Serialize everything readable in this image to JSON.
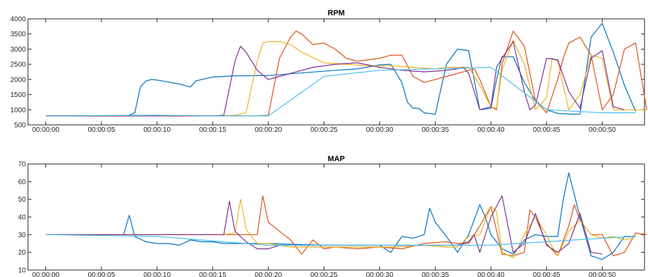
{
  "chart_data": [
    {
      "type": "line",
      "title": "RPM",
      "x_ticks": [
        "00:00:00",
        "00:00:05",
        "00:00:10",
        "00:00:15",
        "00:00:20",
        "00:00:25",
        "00:00:30",
        "00:00:35",
        "00:00:40",
        "00:00:45",
        "00:00:50"
      ],
      "x_tick_seconds": [
        0,
        5,
        10,
        15,
        20,
        25,
        30,
        35,
        40,
        45,
        50
      ],
      "xlim": [
        -1.6,
        53.8
      ],
      "ylim": [
        500,
        4000
      ],
      "y_ticks": [
        500,
        1000,
        1500,
        2000,
        2500,
        3000,
        3500,
        4000
      ],
      "series": [
        {
          "color": "#0072BD",
          "x": [
            0,
            7,
            7.5,
            8,
            8.5,
            9,
            9.5,
            10,
            12,
            13,
            13.5,
            14,
            15,
            16,
            17,
            20,
            26,
            28,
            30,
            31,
            32,
            32.5,
            33,
            33.5,
            34,
            35,
            36,
            37,
            38,
            39,
            40,
            40.5,
            41,
            42,
            43,
            44,
            45,
            46,
            47,
            48,
            49,
            50,
            51,
            52,
            53
          ],
          "y": [
            800,
            800,
            820,
            900,
            1750,
            1950,
            2000,
            1980,
            1850,
            1750,
            1950,
            2000,
            2080,
            2100,
            2120,
            2130,
            2300,
            2350,
            2480,
            2500,
            1900,
            1250,
            1050,
            1050,
            900,
            850,
            2500,
            3000,
            2950,
            1000,
            1050,
            2000,
            2750,
            2750,
            1900,
            1300,
            1000,
            880,
            860,
            850,
            3400,
            3850,
            2900,
            1800,
            950
          ]
        },
        {
          "color": "#D95319",
          "x": [
            0,
            5,
            10,
            15,
            19,
            20,
            21,
            22,
            22.5,
            23,
            24,
            25,
            26,
            27,
            28,
            29,
            30,
            30.5,
            31,
            32,
            33,
            34,
            35,
            36,
            37,
            38,
            38.5,
            39,
            40,
            40.5,
            41,
            42,
            43,
            44,
            45,
            46,
            46.5,
            47,
            48,
            49,
            50,
            51,
            52,
            53,
            54
          ],
          "y": [
            800,
            800,
            800,
            800,
            800,
            820,
            2700,
            3400,
            3600,
            3500,
            3150,
            3200,
            3000,
            2700,
            2600,
            2650,
            2700,
            2750,
            2800,
            2800,
            2100,
            1900,
            2000,
            2100,
            2200,
            2300,
            2350,
            2000,
            1100,
            1000,
            2500,
            3600,
            3100,
            1300,
            900,
            2000,
            2700,
            3200,
            3400,
            2800,
            1000,
            1500,
            3000,
            3200,
            1000
          ]
        },
        {
          "color": "#EDB120",
          "x": [
            0,
            16,
            17,
            18,
            19,
            19.5,
            20,
            21,
            22,
            23,
            25,
            27,
            29,
            31,
            33,
            35,
            36,
            37,
            38,
            39,
            40,
            40.5,
            41,
            42,
            43,
            44,
            45,
            45.5,
            46,
            47,
            48,
            49,
            50,
            51,
            52,
            53,
            54
          ],
          "y": [
            800,
            800,
            820,
            900,
            2600,
            3200,
            3250,
            3250,
            3150,
            2900,
            2550,
            2500,
            2450,
            2450,
            2400,
            2350,
            2400,
            2400,
            2400,
            1800,
            1100,
            1050,
            2300,
            3300,
            2500,
            1000,
            1400,
            2700,
            2600,
            1000,
            1500,
            2800,
            2700,
            1000,
            1000,
            1000,
            1000
          ]
        },
        {
          "color": "#7E2F8E",
          "x": [
            0,
            15,
            16,
            17,
            17.5,
            18,
            19,
            20,
            21,
            22,
            24,
            26,
            28,
            30,
            32,
            34,
            36,
            37,
            37.5,
            38,
            39,
            40,
            40.5,
            41,
            42,
            43,
            43.5,
            44,
            45,
            46,
            47,
            48,
            49,
            50,
            51,
            52
          ],
          "y": [
            800,
            800,
            820,
            2600,
            3100,
            2900,
            2300,
            2000,
            2100,
            2200,
            2400,
            2500,
            2550,
            2400,
            2300,
            2250,
            2300,
            2350,
            2400,
            2200,
            1000,
            1100,
            2400,
            2700,
            3250,
            1600,
            1000,
            1150,
            2700,
            2650,
            1600,
            1050,
            2700,
            2950,
            1100,
            1000
          ]
        },
        {
          "color": "#4DBEEE",
          "x": [
            0,
            10,
            15,
            20,
            25,
            30,
            35,
            40,
            45,
            50,
            53
          ],
          "y": [
            800,
            820,
            800,
            800,
            2100,
            2300,
            2350,
            2400,
            1000,
            900,
            900
          ]
        }
      ]
    },
    {
      "type": "line",
      "title": "MAP",
      "x_ticks": [
        "00:00:00",
        "00:00:05",
        "00:00:10",
        "00:00:15",
        "00:00:20",
        "00:00:25",
        "00:00:30",
        "00:00:35",
        "00:00:40",
        "00:00:45",
        "00:00:50"
      ],
      "x_tick_seconds": [
        0,
        5,
        10,
        15,
        20,
        25,
        30,
        35,
        40,
        45,
        50
      ],
      "xlim": [
        -1.6,
        53.8
      ],
      "ylim": [
        10,
        70
      ],
      "y_ticks": [
        10,
        20,
        30,
        40,
        50,
        60,
        70
      ],
      "series": [
        {
          "color": "#0072BD",
          "x": [
            0,
            5,
            6,
            7,
            7.5,
            8,
            9,
            10,
            11,
            12,
            13,
            14,
            15,
            16,
            20,
            25,
            30,
            31,
            32,
            33,
            34,
            34.5,
            35,
            36,
            37,
            38,
            39,
            39.5,
            40,
            41,
            42,
            43,
            44,
            45,
            46,
            46.5,
            47,
            48,
            49,
            50,
            51,
            52,
            53
          ],
          "y": [
            30,
            30,
            30,
            30,
            41,
            29,
            26,
            25,
            25,
            24,
            27,
            26,
            26,
            25,
            25,
            24,
            24,
            20,
            29,
            28,
            30,
            45,
            37,
            29,
            20,
            30,
            47,
            40,
            30,
            22,
            19,
            27,
            30,
            29,
            29,
            50,
            65,
            40,
            18,
            16,
            20,
            29,
            29
          ]
        },
        {
          "color": "#D95319",
          "x": [
            0,
            5,
            10,
            15,
            18,
            19,
            19.5,
            20,
            21,
            22,
            23,
            24,
            25,
            26,
            28,
            30,
            32,
            34,
            36,
            37,
            38,
            39,
            40,
            41,
            42,
            43,
            43.5,
            44,
            45,
            46,
            47,
            47.5,
            48,
            49,
            50,
            51,
            52,
            53,
            54
          ],
          "y": [
            30,
            30,
            30,
            30,
            30,
            30,
            52,
            37,
            32,
            27,
            19,
            27,
            22,
            23,
            22,
            23,
            22,
            25,
            26,
            25,
            25,
            35,
            46,
            19,
            18,
            20,
            44,
            40,
            25,
            18,
            35,
            47,
            38,
            30,
            30,
            18,
            20,
            31,
            30
          ]
        },
        {
          "color": "#EDB120",
          "x": [
            0,
            5,
            10,
            15,
            16,
            17,
            17.5,
            18,
            19,
            20,
            22,
            25,
            28,
            31,
            34,
            36,
            37,
            38,
            39,
            40,
            40.5,
            41,
            42,
            43,
            44,
            45,
            45.5,
            46,
            47,
            48,
            49,
            50,
            51,
            52,
            53
          ],
          "y": [
            30,
            30,
            30,
            30,
            30,
            31,
            50,
            33,
            25,
            25,
            23,
            23,
            23,
            23,
            24,
            23,
            23,
            29,
            30,
            46,
            43,
            20,
            17,
            30,
            40,
            30,
            23,
            18,
            32,
            38,
            30,
            28,
            29,
            27,
            29
          ]
        },
        {
          "color": "#7E2F8E",
          "x": [
            0,
            5,
            10,
            15,
            16,
            16.5,
            17,
            18,
            19,
            20,
            21,
            25,
            30,
            35,
            36,
            37,
            38,
            38.5,
            39,
            40,
            41,
            42,
            43,
            44,
            45,
            46,
            47,
            48,
            49,
            50
          ],
          "y": [
            30,
            30,
            30,
            30,
            30,
            49,
            32,
            26,
            22,
            22,
            24,
            24,
            24,
            24,
            24,
            24,
            26,
            30,
            20,
            40,
            52,
            20,
            25,
            42,
            24,
            20,
            25,
            42,
            20,
            19
          ]
        },
        {
          "color": "#4DBEEE",
          "x": [
            0,
            10,
            20,
            30,
            40,
            50,
            53
          ],
          "y": [
            30,
            29,
            24,
            24,
            24,
            28,
            29
          ]
        }
      ]
    }
  ]
}
